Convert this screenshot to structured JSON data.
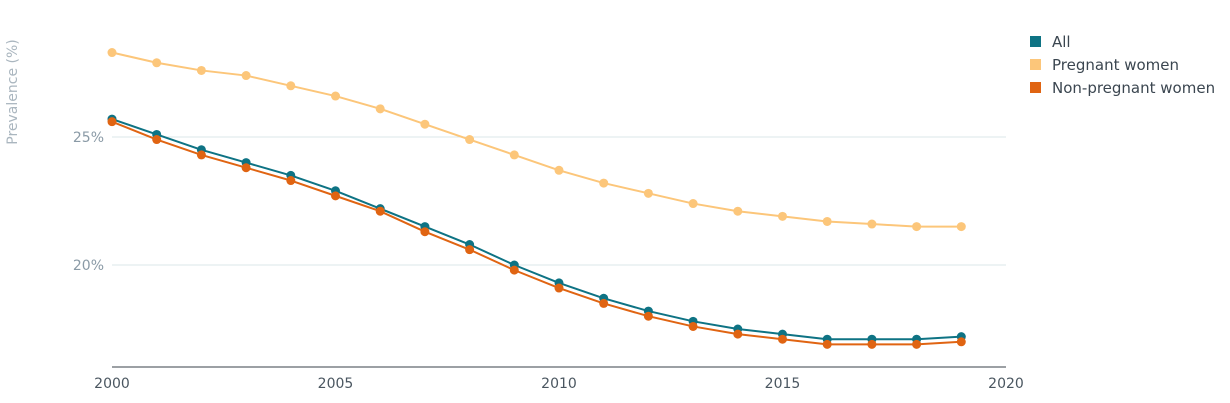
{
  "chart_data": {
    "type": "line",
    "title": "",
    "xlabel": "",
    "ylabel": "Prevalence (%)",
    "x": [
      2000,
      2001,
      2002,
      2003,
      2004,
      2005,
      2006,
      2007,
      2008,
      2009,
      2010,
      2011,
      2012,
      2013,
      2014,
      2015,
      2016,
      2017,
      2018,
      2019
    ],
    "xlim": [
      2000,
      2020
    ],
    "ylim": [
      16,
      30
    ],
    "x_ticks": [
      2000,
      2005,
      2010,
      2015,
      2020
    ],
    "x_tick_labels": [
      "2000",
      "2005",
      "2010",
      "2015",
      "2020"
    ],
    "y_ticks": [
      20,
      25
    ],
    "y_tick_labels": [
      "20%",
      "25%"
    ],
    "grid": "horizontal",
    "legend_position": "top-right",
    "series": [
      {
        "name": "All",
        "color": "#0e7384",
        "values": [
          25.7,
          25.1,
          24.5,
          24.0,
          23.5,
          22.9,
          22.2,
          21.5,
          20.8,
          20.0,
          19.3,
          18.7,
          18.2,
          17.8,
          17.5,
          17.3,
          17.1,
          17.1,
          17.1,
          17.2
        ]
      },
      {
        "name": "Pregnant women",
        "color": "#fcc67a",
        "values": [
          28.3,
          27.9,
          27.6,
          27.4,
          27.0,
          26.6,
          26.1,
          25.5,
          24.9,
          24.3,
          23.7,
          23.2,
          22.8,
          22.4,
          22.1,
          21.9,
          21.7,
          21.6,
          21.5,
          21.5
        ]
      },
      {
        "name": "Non-pregnant women",
        "color": "#e06412",
        "values": [
          25.6,
          24.9,
          24.3,
          23.8,
          23.3,
          22.7,
          22.1,
          21.3,
          20.6,
          19.8,
          19.1,
          18.5,
          18.0,
          17.6,
          17.3,
          17.1,
          16.9,
          16.9,
          16.9,
          17.0
        ]
      }
    ]
  }
}
